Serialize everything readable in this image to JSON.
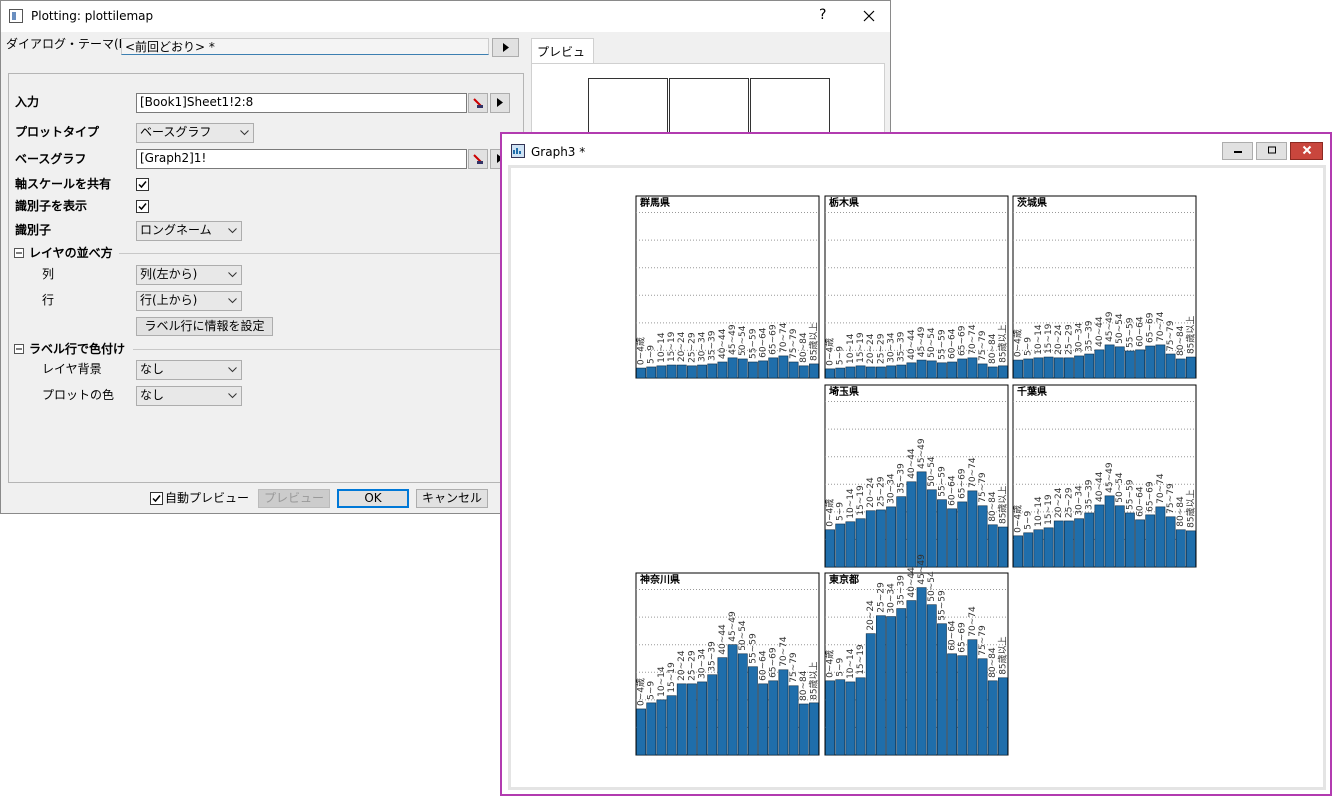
{
  "dialog": {
    "title": "Plotting: plottilemap",
    "help": "?",
    "theme_label": "ダイアログ・テーマ(H)",
    "theme_value": "<前回どおり> *",
    "preview_tab": "プレビュー",
    "input": {
      "label": "入力",
      "value": "[Book1]Sheet1!2:8"
    },
    "plot_type": {
      "label": "プロットタイプ",
      "value": "ベースグラフ"
    },
    "base_graph": {
      "label": "ベースグラフ",
      "value": "[Graph2]1!"
    },
    "share_scale": {
      "label": "軸スケールを共有",
      "checked": true
    },
    "show_id": {
      "label": "識別子を表示",
      "checked": true
    },
    "identifier": {
      "label": "識別子",
      "value": "ロングネーム"
    },
    "layer_order": {
      "label": "レイヤの並べ方",
      "column": {
        "label": "列",
        "value": "列(左から)"
      },
      "row": {
        "label": "行",
        "value": "行(上から)"
      },
      "button": "ラベル行に情報を設定"
    },
    "color_by": {
      "label": "ラベル行で色付け",
      "background": {
        "label": "レイヤ背景",
        "value": "なし"
      },
      "plot_color": {
        "label": "プロットの色",
        "value": "なし"
      }
    },
    "auto_preview": {
      "label": "自動プレビュー",
      "checked": true
    },
    "buttons": {
      "preview": "プレビュー",
      "ok": "OK",
      "cancel": "キャンセル"
    }
  },
  "graph_window": {
    "title": "Graph3 *"
  },
  "chart_data": {
    "type": "bar",
    "color": "#1f6eab",
    "grid": true,
    "ylim": [
      0,
      6.6
    ],
    "yticks": [
      1,
      2,
      3,
      4,
      5,
      6
    ],
    "categories": [
      "0~4歳",
      "5~9",
      "10~14",
      "15~19",
      "20~24",
      "25~29",
      "30~34",
      "35~39",
      "40~44",
      "45~49",
      "50~54",
      "55~59",
      "60~64",
      "65~69",
      "70~74",
      "75~79",
      "80~84",
      "85歳以上"
    ],
    "series": [
      {
        "name": "群馬県",
        "values": [
          0.36,
          0.4,
          0.44,
          0.47,
          0.47,
          0.44,
          0.47,
          0.51,
          0.58,
          0.73,
          0.69,
          0.58,
          0.62,
          0.73,
          0.8,
          0.58,
          0.44,
          0.51
        ]
      },
      {
        "name": "栃木県",
        "values": [
          0.33,
          0.36,
          0.4,
          0.44,
          0.4,
          0.4,
          0.44,
          0.47,
          0.55,
          0.65,
          0.62,
          0.55,
          0.58,
          0.69,
          0.73,
          0.51,
          0.4,
          0.44
        ]
      },
      {
        "name": "茨城県",
        "values": [
          0.65,
          0.69,
          0.73,
          0.76,
          0.73,
          0.73,
          0.8,
          0.87,
          1.02,
          1.2,
          1.13,
          0.98,
          1.02,
          1.16,
          1.2,
          0.87,
          0.69,
          0.76
        ]
      },
      {
        "name": "埼玉県",
        "values": [
          1.35,
          1.56,
          1.64,
          1.75,
          2.04,
          2.07,
          2.18,
          2.55,
          3.09,
          3.45,
          2.8,
          2.44,
          2.11,
          2.36,
          2.76,
          2.22,
          1.53,
          1.45
        ]
      },
      {
        "name": "千葉県",
        "values": [
          1.13,
          1.24,
          1.35,
          1.42,
          1.67,
          1.67,
          1.75,
          1.96,
          2.25,
          2.58,
          2.22,
          1.96,
          1.71,
          1.89,
          2.18,
          1.82,
          1.35,
          1.31
        ]
      },
      {
        "name": "神奈川県",
        "values": [
          1.67,
          1.89,
          2,
          2.15,
          2.58,
          2.58,
          2.65,
          2.91,
          3.53,
          4,
          3.67,
          3.2,
          2.58,
          2.69,
          3.09,
          2.51,
          1.85,
          1.89
        ]
      },
      {
        "name": "東京都",
        "values": [
          2.69,
          2.73,
          2.65,
          2.8,
          4.4,
          5.05,
          5.02,
          5.31,
          5.6,
          6.07,
          5.45,
          4.76,
          3.67,
          3.6,
          4.18,
          3.49,
          2.69,
          2.8
        ]
      }
    ]
  }
}
